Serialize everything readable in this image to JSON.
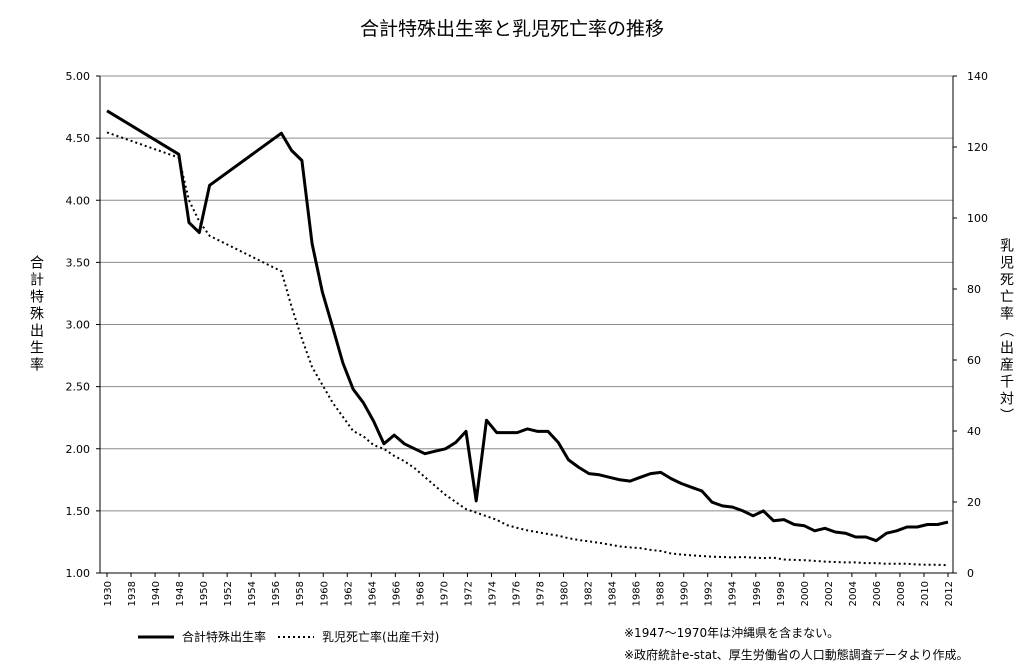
{
  "chart_data": {
    "type": "line",
    "title": "合計特殊出生率と乳児死亡率の推移",
    "ylabel_left": "合計特殊出生率",
    "ylabel_right": "乳児死亡率（出産千対）",
    "ylim_left": [
      1.0,
      5.0
    ],
    "ylim_right": [
      0,
      140
    ],
    "yticks_left": [
      "1.00",
      "1.50",
      "2.00",
      "2.50",
      "3.00",
      "3.50",
      "4.00",
      "4.50",
      "5.00"
    ],
    "yticks_right": [
      "0",
      "20",
      "40",
      "60",
      "80",
      "100",
      "120",
      "140"
    ],
    "xlim": [
      1930,
      2012
    ],
    "grid": "horizontal",
    "legend_position": "bottom-left",
    "x_tick_labels": [
      "1930",
      "1938",
      "1940",
      "1948",
      "1950",
      "1952",
      "1954",
      "1956",
      "1958",
      "1960",
      "1962",
      "1964",
      "1966",
      "1968",
      "1970",
      "1972",
      "1974",
      "1976",
      "1978",
      "1980",
      "1982",
      "1984",
      "1986",
      "1988",
      "1990",
      "1992",
      "1994",
      "1996",
      "1998",
      "2000",
      "2002",
      "2004",
      "2006",
      "2008",
      "2010",
      "2012"
    ],
    "series": [
      {
        "name": "合計特殊出生率",
        "axis": "left",
        "style": "solid",
        "color": "#000000",
        "x": [
          1930,
          1937,
          1938,
          1939,
          1940,
          1947,
          1948,
          1949,
          1950,
          1951,
          1952,
          1953,
          1954,
          1955,
          1956,
          1957,
          1958,
          1959,
          1960,
          1961,
          1962,
          1963,
          1964,
          1965,
          1966,
          1967,
          1968,
          1969,
          1970,
          1971,
          1972,
          1973,
          1974,
          1975,
          1976,
          1977,
          1978,
          1979,
          1980,
          1981,
          1982,
          1983,
          1984,
          1985,
          1986,
          1987,
          1988,
          1989,
          1990,
          1991,
          1992,
          1993,
          1994,
          1995,
          1996,
          1997,
          1998,
          1999,
          2000,
          2001,
          2002,
          2003,
          2004,
          2005,
          2006,
          2007,
          2008,
          2009,
          2010,
          2011,
          2012
        ],
        "y": [
          4.72,
          4.37,
          3.82,
          3.74,
          4.12,
          4.54,
          4.4,
          4.32,
          3.65,
          3.26,
          2.98,
          2.69,
          2.48,
          2.37,
          2.22,
          2.04,
          2.11,
          2.04,
          2.0,
          1.96,
          1.98,
          2.0,
          2.05,
          2.14,
          1.58,
          2.23,
          2.13,
          2.13,
          2.13,
          2.16,
          2.14,
          2.14,
          2.05,
          1.91,
          1.85,
          1.8,
          1.79,
          1.77,
          1.75,
          1.74,
          1.77,
          1.8,
          1.81,
          1.76,
          1.72,
          1.69,
          1.66,
          1.57,
          1.54,
          1.53,
          1.5,
          1.46,
          1.5,
          1.42,
          1.43,
          1.39,
          1.38,
          1.34,
          1.36,
          1.33,
          1.32,
          1.29,
          1.29,
          1.26,
          1.32,
          1.34,
          1.37,
          1.37,
          1.39,
          1.39,
          1.41
        ]
      },
      {
        "name": "乳児死亡率(出産千対)",
        "axis": "right",
        "style": "dotted",
        "color": "#000000",
        "x": [
          1930,
          1937,
          1938,
          1939,
          1940,
          1947,
          1948,
          1949,
          1950,
          1951,
          1952,
          1953,
          1954,
          1955,
          1956,
          1957,
          1958,
          1959,
          1960,
          1961,
          1962,
          1963,
          1964,
          1965,
          1966,
          1967,
          1968,
          1969,
          1970,
          1971,
          1972,
          1973,
          1974,
          1975,
          1976,
          1977,
          1978,
          1979,
          1980,
          1981,
          1982,
          1983,
          1984,
          1985,
          1986,
          1987,
          1988,
          1989,
          1990,
          1991,
          1992,
          1993,
          1994,
          1995,
          1996,
          1997,
          1998,
          1999,
          2000,
          2001,
          2002,
          2003,
          2004,
          2005,
          2006,
          2007,
          2008,
          2009,
          2010,
          2011,
          2012
        ],
        "y": [
          124.1,
          117.0,
          105.0,
          99.0,
          95.0,
          85.0,
          75.0,
          66.0,
          58.0,
          53.0,
          48.0,
          44.0,
          40.0,
          38.5,
          36.0,
          35.0,
          33.0,
          31.5,
          29.5,
          27.0,
          24.5,
          22.0,
          20.0,
          18.0,
          17.0,
          16.0,
          15.0,
          13.5,
          12.7,
          12.0,
          11.5,
          11.0,
          10.5,
          9.8,
          9.3,
          8.9,
          8.5,
          8.0,
          7.5,
          7.2,
          7.0,
          6.5,
          6.2,
          5.5,
          5.2,
          5.0,
          4.8,
          4.6,
          4.5,
          4.4,
          4.5,
          4.3,
          4.2,
          4.3,
          3.8,
          3.7,
          3.6,
          3.4,
          3.2,
          3.1,
          3.0,
          3.0,
          2.8,
          2.8,
          2.6,
          2.6,
          2.6,
          2.4,
          2.3,
          2.3,
          2.2
        ]
      }
    ],
    "notes": [
      "※1947～1970年は沖縄県を含まない。",
      "※政府統計e-stat、厚生労働省の人口動態調査データより作成。"
    ]
  }
}
